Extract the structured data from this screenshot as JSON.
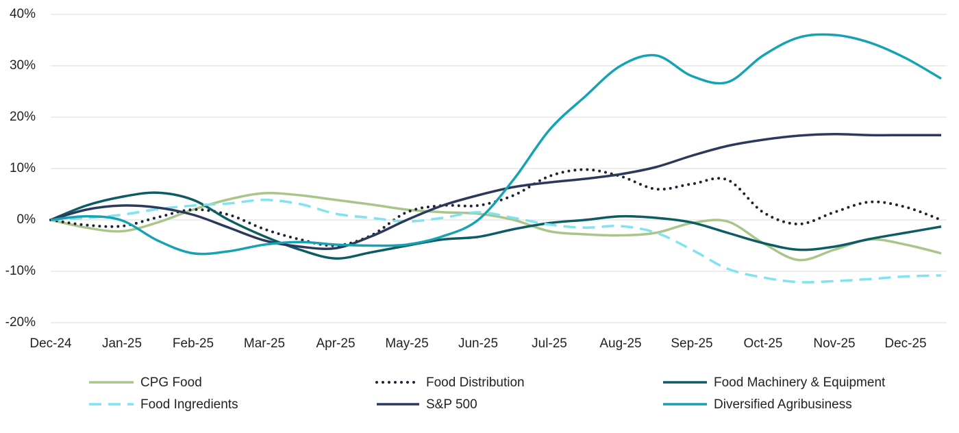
{
  "chart_data": {
    "type": "line",
    "categories": [
      "Dec-24",
      null,
      "Jan-25",
      null,
      "Feb-25",
      null,
      "Mar-25",
      null,
      "Apr-25",
      null,
      "May-25",
      null,
      "Jun-25",
      null,
      "Jul-25",
      null,
      "Aug-25",
      null,
      "Sep-25",
      null,
      "Oct-25",
      null,
      "Nov-25",
      null,
      "Dec-25",
      null
    ],
    "ylim": [
      -20,
      40
    ],
    "yticks": [
      {
        "value": -20,
        "label": "-20%"
      },
      {
        "value": -10,
        "label": "-10%"
      },
      {
        "value": 0,
        "label": "0%"
      },
      {
        "value": 10,
        "label": "10%"
      },
      {
        "value": 20,
        "label": "20%"
      },
      {
        "value": 30,
        "label": "30%"
      },
      {
        "value": 40,
        "label": "40%"
      }
    ],
    "grid": true,
    "legend": "bottom",
    "series": [
      {
        "name": "CPG Food",
        "color": "#a9c58a",
        "style": "solid",
        "values": [
          0,
          -1.5,
          -2.2,
          -0.5,
          2,
          4,
          5.2,
          4.8,
          3.9,
          3,
          2,
          1.5,
          1.2,
          0,
          -2.2,
          -2.8,
          -3,
          -2.5,
          -0.6,
          -0.3,
          -4.5,
          -7.8,
          -5.8,
          -3.8,
          -4.8,
          -6.5
        ]
      },
      {
        "name": "Food Distribution",
        "color": "#1c2333",
        "style": "dotted",
        "values": [
          0,
          -1,
          -1.2,
          0.5,
          2,
          1,
          -1.8,
          -3.8,
          -5,
          -3,
          1.5,
          2.8,
          2.8,
          4.8,
          8.5,
          9.8,
          8.5,
          6,
          7,
          7.8,
          1.5,
          -0.8,
          1.5,
          3.5,
          2.5,
          0
        ]
      },
      {
        "name": "Food Machinery & Equipment",
        "color": "#0d5c63",
        "style": "solid",
        "values": [
          0,
          2.8,
          4.5,
          5.3,
          3.9,
          0,
          -3.2,
          -5.8,
          -7.5,
          -6.3,
          -5,
          -3.8,
          -3.3,
          -1.8,
          -0.6,
          0,
          0.7,
          0.4,
          -0.5,
          -2.5,
          -4.5,
          -5.8,
          -5.2,
          -3.7,
          -2.5,
          -1.3
        ]
      },
      {
        "name": "Food Ingredients",
        "color": "#7fe3f0",
        "style": "dashed",
        "values": [
          0,
          0.4,
          1,
          2.1,
          2.8,
          3.2,
          3.9,
          3.1,
          1.2,
          0.4,
          -0.3,
          0.4,
          1.5,
          0.4,
          -0.9,
          -1.5,
          -1.2,
          -2.5,
          -5.8,
          -9.5,
          -11.2,
          -12.1,
          -11.9,
          -11.5,
          -11,
          -10.8
        ]
      },
      {
        "name": "S&P 500",
        "color": "#2b3a5c",
        "style": "solid",
        "values": [
          0,
          2,
          2.8,
          2.4,
          1,
          -1.5,
          -4,
          -5.2,
          -5.5,
          -3.2,
          0,
          2.8,
          4.8,
          6.4,
          7.3,
          8,
          8.9,
          10.3,
          12.5,
          14.4,
          15.6,
          16.4,
          16.7,
          16.5,
          16.5,
          16.5
        ]
      },
      {
        "name": "Diversified Agribusiness",
        "color": "#15a3b3",
        "style": "solid",
        "values": [
          0,
          0.7,
          -0.1,
          -4,
          -6.5,
          -6.1,
          -4.8,
          -4.3,
          -4.8,
          -5,
          -4.8,
          -3.2,
          0,
          7.9,
          17.5,
          24,
          30,
          32,
          28,
          26.8,
          32,
          35.5,
          36,
          34.5,
          31.5,
          27.5
        ]
      }
    ]
  }
}
